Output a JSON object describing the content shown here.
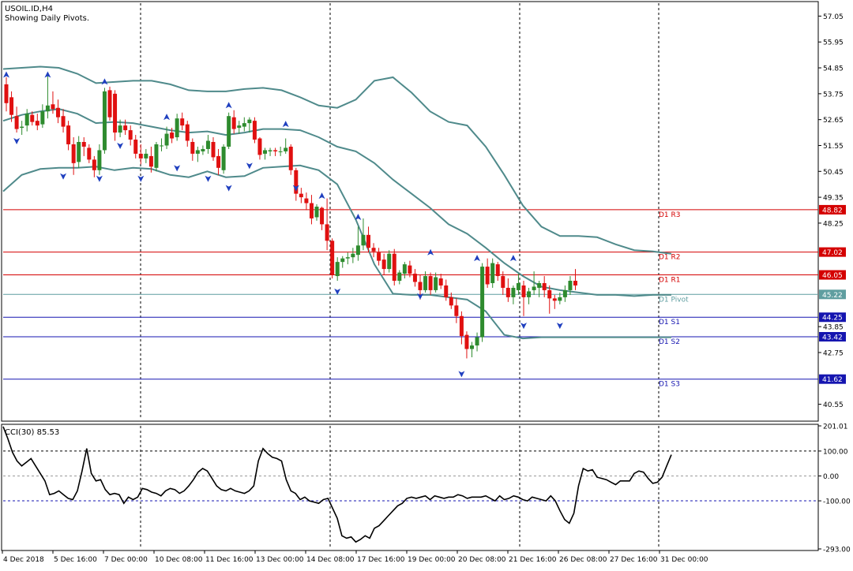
{
  "header": {
    "symbol_line": "USOIL.ID,H4",
    "subtitle": "Showing Daily Pivots."
  },
  "colors": {
    "bull": "#2e8b2e",
    "bear": "#e01010",
    "bands": "#4f8a8b",
    "resistance": "#d40000",
    "support": "#1515b0",
    "pivot": "#5f9ea0",
    "fractal": "#1f3fbf",
    "grid": "#000000"
  },
  "chart_data": [
    {
      "type": "candlestick",
      "title": "USOIL.ID,H4",
      "subtitle": "Showing Daily Pivots.",
      "ylim": [
        39.9,
        57.6
      ],
      "y_ticks": [
        "57.05",
        "55.95",
        "54.85",
        "53.75",
        "52.65",
        "51.55",
        "50.45",
        "49.35",
        "48.25",
        "43.85",
        "42.75",
        "40.55"
      ],
      "x_labels": [
        "4 Dec 2018",
        "5 Dec 16:00",
        "7 Dec 00:00",
        "10 Dec 08:00",
        "11 Dec 16:00",
        "13 Dec 00:00",
        "14 Dec 08:00",
        "17 Dec 16:00",
        "19 Dec 00:00",
        "20 Dec 08:00",
        "21 Dec 16:00",
        "26 Dec 08:00",
        "27 Dec 16:00",
        "31 Dec 00:00"
      ],
      "pivots": [
        {
          "name": "D1 R3",
          "value": 48.82,
          "label": "48.82",
          "kind": "resistance"
        },
        {
          "name": "D1 R2",
          "value": 47.02,
          "label": "47.02",
          "kind": "resistance"
        },
        {
          "name": "D1 R1",
          "value": 46.05,
          "label": "46.05",
          "kind": "resistance"
        },
        {
          "name": "D1 Pivot",
          "value": 45.22,
          "label": "45.22",
          "kind": "pivot"
        },
        {
          "name": "D1 S1",
          "value": 44.25,
          "label": "44.25",
          "kind": "support"
        },
        {
          "name": "D1 S2",
          "value": 43.42,
          "label": "43.42",
          "kind": "support"
        },
        {
          "name": "D1 S3",
          "value": 41.62,
          "label": "41.62",
          "kind": "support"
        }
      ],
      "bands": {
        "upper": [
          54.8,
          54.85,
          54.9,
          54.85,
          54.6,
          54.2,
          54.25,
          54.3,
          54.3,
          54.15,
          53.9,
          53.85,
          53.85,
          53.95,
          54.0,
          53.9,
          53.6,
          53.25,
          53.15,
          53.5,
          54.3,
          54.45,
          53.8,
          53.0,
          52.55,
          52.4,
          51.5,
          50.3,
          49.0,
          48.1,
          47.7,
          47.7,
          47.65,
          47.35,
          47.1,
          47.05,
          46.95
        ],
        "middle": [
          52.6,
          52.85,
          53.0,
          53.1,
          52.9,
          52.5,
          52.55,
          52.5,
          52.35,
          52.2,
          52.1,
          52.15,
          52.0,
          52.1,
          52.25,
          52.25,
          52.2,
          51.9,
          51.5,
          51.3,
          50.8,
          50.1,
          49.5,
          48.9,
          48.2,
          47.8,
          47.2,
          46.55,
          46.0,
          45.55,
          45.4,
          45.3,
          45.2,
          45.2,
          45.15,
          45.2,
          45.2
        ],
        "lower": [
          49.6,
          50.3,
          50.55,
          50.6,
          50.6,
          50.65,
          50.5,
          50.6,
          50.55,
          50.3,
          50.2,
          50.45,
          50.2,
          50.25,
          50.6,
          50.65,
          50.7,
          50.5,
          49.9,
          48.4,
          46.5,
          45.25,
          45.2,
          45.2,
          45.1,
          45.0,
          44.5,
          43.5,
          43.35,
          43.4,
          43.4,
          43.4,
          43.4,
          43.4,
          43.4,
          43.4,
          43.4
        ]
      },
      "candles": [
        [
          54.15,
          54.45,
          53.0,
          53.35
        ],
        [
          53.6,
          53.85,
          52.55,
          52.85
        ],
        [
          52.8,
          53.2,
          52.1,
          52.25
        ],
        [
          52.3,
          52.6,
          52.0,
          52.35
        ],
        [
          52.4,
          53.1,
          52.15,
          52.9
        ],
        [
          52.85,
          53.0,
          52.4,
          52.55
        ],
        [
          52.6,
          52.9,
          52.2,
          52.4
        ],
        [
          52.45,
          53.3,
          52.3,
          53.0
        ],
        [
          53.0,
          54.5,
          52.7,
          53.25
        ],
        [
          53.3,
          53.85,
          52.9,
          53.1
        ],
        [
          53.15,
          53.5,
          52.5,
          52.75
        ],
        [
          52.8,
          53.1,
          52.1,
          52.35
        ],
        [
          52.4,
          52.6,
          51.35,
          51.6
        ],
        [
          51.6,
          51.9,
          50.3,
          50.8
        ],
        [
          50.85,
          51.95,
          50.6,
          51.7
        ],
        [
          51.7,
          51.9,
          51.1,
          51.5
        ],
        [
          51.45,
          51.6,
          50.8,
          50.95
        ],
        [
          50.95,
          51.1,
          50.2,
          50.5
        ],
        [
          50.5,
          51.6,
          50.3,
          51.35
        ],
        [
          51.35,
          54.0,
          51.2,
          53.85
        ],
        [
          53.9,
          54.05,
          52.6,
          52.75
        ],
        [
          53.75,
          53.9,
          51.75,
          52.1
        ],
        [
          52.1,
          52.65,
          51.9,
          52.4
        ],
        [
          52.4,
          52.65,
          52.0,
          52.2
        ],
        [
          52.2,
          52.4,
          51.55,
          51.8
        ],
        [
          51.8,
          52.0,
          51.0,
          51.2
        ],
        [
          51.2,
          51.6,
          50.75,
          51.0
        ],
        [
          51.0,
          51.4,
          50.8,
          51.2
        ],
        [
          51.1,
          51.5,
          50.4,
          50.65
        ],
        [
          50.6,
          51.7,
          50.45,
          51.6
        ],
        [
          51.55,
          51.85,
          51.3,
          51.55
        ],
        [
          51.55,
          52.35,
          51.4,
          52.05
        ],
        [
          52.1,
          52.3,
          51.65,
          51.85
        ],
        [
          51.9,
          52.9,
          51.75,
          52.7
        ],
        [
          52.7,
          52.95,
          52.2,
          52.4
        ],
        [
          52.45,
          52.6,
          51.5,
          51.75
        ],
        [
          51.7,
          51.85,
          50.9,
          51.2
        ],
        [
          51.2,
          51.5,
          50.85,
          51.35
        ],
        [
          51.3,
          51.55,
          51.15,
          51.4
        ],
        [
          51.4,
          52.0,
          51.2,
          51.75
        ],
        [
          51.7,
          51.9,
          50.9,
          51.05
        ],
        [
          51.1,
          51.4,
          50.3,
          50.6
        ],
        [
          50.5,
          51.6,
          50.35,
          51.5
        ],
        [
          51.5,
          52.95,
          51.4,
          52.8
        ],
        [
          52.75,
          53.05,
          52.05,
          52.25
        ],
        [
          52.3,
          52.6,
          52.05,
          52.4
        ],
        [
          52.35,
          52.75,
          52.15,
          52.5
        ],
        [
          52.5,
          52.75,
          52.1,
          52.65
        ],
        [
          52.6,
          52.75,
          51.65,
          51.8
        ],
        [
          51.85,
          51.9,
          50.95,
          51.15
        ],
        [
          51.2,
          51.45,
          50.95,
          51.35
        ],
        [
          51.3,
          51.45,
          51.1,
          51.35
        ],
        [
          51.35,
          51.45,
          51.1,
          51.3
        ],
        [
          51.3,
          51.5,
          51.1,
          51.3
        ],
        [
          51.3,
          51.85,
          51.2,
          51.45
        ],
        [
          51.5,
          51.6,
          50.3,
          50.5
        ],
        [
          50.5,
          50.6,
          49.2,
          49.5
        ],
        [
          49.5,
          49.75,
          49.1,
          49.35
        ],
        [
          49.3,
          49.55,
          48.8,
          49.1
        ],
        [
          49.1,
          49.45,
          48.2,
          48.45
        ],
        [
          48.5,
          49.05,
          48.35,
          48.95
        ],
        [
          48.9,
          48.95,
          47.95,
          48.2
        ],
        [
          48.2,
          49.3,
          47.1,
          47.5
        ],
        [
          47.5,
          47.6,
          45.9,
          46.05
        ],
        [
          46.0,
          46.8,
          45.8,
          46.6
        ],
        [
          46.6,
          46.85,
          46.35,
          46.75
        ],
        [
          46.75,
          47.0,
          46.5,
          46.8
        ],
        [
          46.8,
          47.2,
          46.55,
          46.95
        ],
        [
          46.9,
          48.1,
          46.65,
          47.3
        ],
        [
          47.3,
          48.45,
          47.1,
          47.75
        ],
        [
          47.75,
          48.1,
          47.0,
          47.2
        ],
        [
          47.2,
          47.4,
          46.8,
          47.05
        ],
        [
          47.0,
          47.2,
          46.45,
          46.65
        ],
        [
          46.7,
          46.95,
          46.05,
          46.3
        ],
        [
          46.3,
          47.1,
          46.15,
          46.95
        ],
        [
          46.95,
          47.15,
          45.6,
          45.8
        ],
        [
          45.8,
          46.25,
          45.65,
          46.15
        ],
        [
          46.1,
          46.6,
          45.9,
          46.5
        ],
        [
          46.45,
          46.65,
          45.95,
          46.1
        ],
        [
          46.1,
          46.3,
          45.55,
          45.75
        ],
        [
          45.75,
          46.05,
          45.0,
          45.4
        ],
        [
          45.4,
          46.2,
          45.3,
          46.0
        ],
        [
          46.0,
          46.15,
          45.2,
          45.4
        ],
        [
          45.4,
          46.15,
          45.3,
          45.95
        ],
        [
          45.9,
          46.1,
          45.45,
          45.6
        ],
        [
          45.6,
          45.85,
          44.95,
          45.1
        ],
        [
          45.1,
          45.3,
          44.6,
          44.75
        ],
        [
          44.75,
          45.05,
          44.0,
          44.3
        ],
        [
          44.3,
          44.5,
          43.1,
          43.45
        ],
        [
          43.5,
          43.65,
          42.5,
          42.9
        ],
        [
          42.9,
          43.2,
          42.55,
          43.05
        ],
        [
          43.05,
          43.6,
          42.8,
          43.4
        ],
        [
          43.4,
          46.55,
          43.2,
          46.4
        ],
        [
          46.4,
          46.75,
          45.5,
          45.65
        ],
        [
          45.7,
          46.75,
          45.5,
          46.55
        ],
        [
          46.5,
          46.6,
          45.8,
          46.0
        ],
        [
          46.0,
          46.2,
          45.2,
          45.5
        ],
        [
          45.5,
          45.9,
          44.9,
          45.1
        ],
        [
          45.1,
          45.6,
          44.8,
          45.5
        ],
        [
          45.4,
          46.1,
          45.2,
          45.7
        ],
        [
          45.6,
          45.8,
          44.3,
          45.1
        ],
        [
          45.1,
          45.5,
          44.8,
          45.35
        ],
        [
          45.4,
          46.2,
          45.2,
          45.55
        ],
        [
          45.5,
          45.8,
          45.1,
          45.7
        ],
        [
          45.7,
          46.0,
          45.1,
          45.4
        ],
        [
          45.4,
          45.6,
          44.4,
          45.05
        ],
        [
          45.05,
          45.2,
          44.6,
          44.95
        ],
        [
          44.95,
          45.3,
          44.8,
          45.1
        ],
        [
          45.1,
          45.6,
          44.9,
          45.4
        ],
        [
          45.4,
          46.0,
          45.2,
          45.8
        ],
        [
          45.8,
          46.3,
          45.4,
          45.6
        ]
      ],
      "fractals_up": [
        [
          0,
          54.5
        ],
        [
          8,
          54.5
        ],
        [
          19,
          54.2
        ],
        [
          31,
          52.7
        ],
        [
          43,
          53.2
        ],
        [
          54,
          52.4
        ],
        [
          61,
          49.35
        ],
        [
          68,
          48.45
        ],
        [
          82,
          46.95
        ],
        [
          91,
          46.7
        ],
        [
          98,
          46.7
        ]
      ],
      "fractals_down": [
        [
          2,
          51.8
        ],
        [
          11,
          50.3
        ],
        [
          18,
          50.2
        ],
        [
          22,
          51.6
        ],
        [
          26,
          50.2
        ],
        [
          33,
          50.65
        ],
        [
          39,
          50.2
        ],
        [
          43,
          49.8
        ],
        [
          47,
          50.75
        ],
        [
          56,
          49.8
        ],
        [
          64,
          45.4
        ],
        [
          80,
          45.2
        ],
        [
          88,
          41.9
        ],
        [
          100,
          43.95
        ],
        [
          107,
          43.95
        ]
      ]
    },
    {
      "type": "line",
      "title": "CCI(30) 85.53",
      "indicator": "CCI(30)",
      "current_value": 85.53,
      "ylim": [
        -293,
        201
      ],
      "y_ticks": [
        "201.01",
        "100.00",
        "0.00",
        "-100.00",
        "-293.00"
      ],
      "levels": [
        100,
        0,
        -100
      ],
      "values": [
        198,
        150,
        95,
        60,
        40,
        55,
        70,
        40,
        10,
        -20,
        -75,
        -70,
        -60,
        -75,
        -90,
        -95,
        -60,
        20,
        110,
        10,
        -20,
        -15,
        -55,
        -75,
        -70,
        -75,
        -110,
        -85,
        -95,
        -85,
        -50,
        -55,
        -65,
        -70,
        -80,
        -60,
        -50,
        -55,
        -70,
        -60,
        -40,
        -15,
        15,
        30,
        20,
        -10,
        -40,
        -55,
        -60,
        -50,
        -60,
        -65,
        -70,
        -60,
        -40,
        60,
        110,
        90,
        75,
        70,
        60,
        -15,
        -60,
        -70,
        -95,
        -85,
        -100,
        -105,
        -110,
        -95,
        -90,
        -130,
        -170,
        -240,
        -250,
        -245,
        -265,
        -255,
        -240,
        -250,
        -210,
        -200,
        -180,
        -160,
        -140,
        -120,
        -110,
        -90,
        -85,
        -90,
        -85,
        -80,
        -95,
        -80,
        -85,
        -90,
        -85,
        -85,
        -75,
        -80,
        -90,
        -85,
        -85,
        -85,
        -80,
        -90,
        -100,
        -80,
        -95,
        -90,
        -80,
        -85,
        -95,
        -100,
        -85,
        -90,
        -95,
        -100,
        -80,
        -100,
        -140,
        -175,
        -190,
        -150,
        -40,
        30,
        20,
        25,
        -5,
        -10,
        -15,
        -25,
        -35,
        -20,
        -20,
        -20,
        10,
        20,
        15,
        -10,
        -30,
        -25,
        -5,
        40,
        85
      ]
    }
  ]
}
